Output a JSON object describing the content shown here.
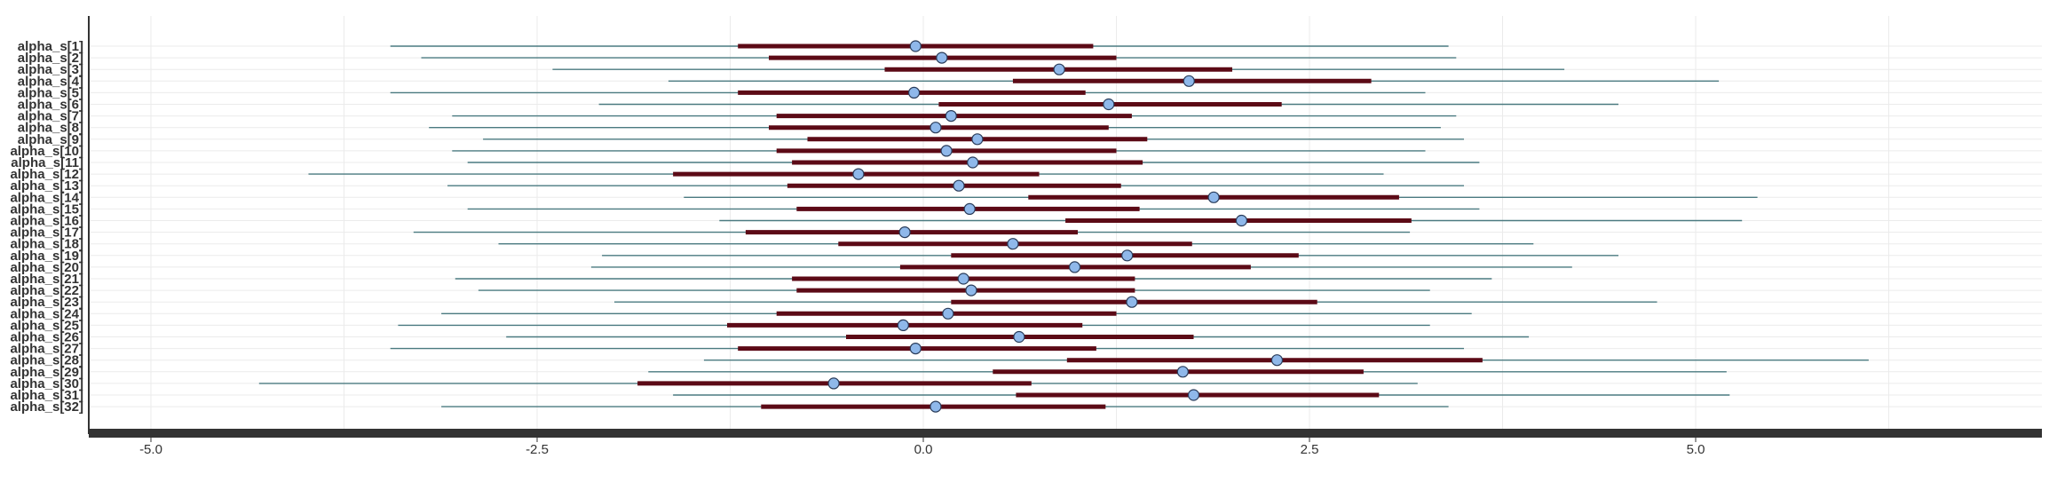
{
  "chart_data": {
    "type": "forest",
    "title": "",
    "xlabel": "",
    "ylabel": "",
    "grid": true,
    "xlim": [
      -5.4,
      7.2
    ],
    "xticks": [
      -5.0,
      -2.5,
      0.0,
      2.5,
      5.0
    ],
    "xtick_labels": [
      "-5.0",
      "-2.5",
      "0.0",
      "2.5",
      "5.0"
    ],
    "colors": {
      "outer_interval": "#4a7a80",
      "inner_interval": "#5c0a16",
      "point_fill": "#8fb8ea",
      "point_stroke": "#2a3c5a",
      "axis": "#333333",
      "grid": "#ebebeb"
    },
    "parameters": [
      {
        "label": "alpha_s[1]",
        "mean": -0.05,
        "inner": [
          -1.2,
          1.1
        ],
        "outer": [
          -3.45,
          3.4
        ]
      },
      {
        "label": "alpha_s[2]",
        "mean": 0.12,
        "inner": [
          -1.0,
          1.25
        ],
        "outer": [
          -3.25,
          3.45
        ]
      },
      {
        "label": "alpha_s[3]",
        "mean": 0.88,
        "inner": [
          -0.25,
          2.0
        ],
        "outer": [
          -2.4,
          4.15
        ]
      },
      {
        "label": "alpha_s[4]",
        "mean": 1.72,
        "inner": [
          0.58,
          2.9
        ],
        "outer": [
          -1.65,
          5.15
        ]
      },
      {
        "label": "alpha_s[5]",
        "mean": -0.06,
        "inner": [
          -1.2,
          1.05
        ],
        "outer": [
          -3.45,
          3.25
        ]
      },
      {
        "label": "alpha_s[6]",
        "mean": 1.2,
        "inner": [
          0.1,
          2.32
        ],
        "outer": [
          -2.1,
          4.5
        ]
      },
      {
        "label": "alpha_s[7]",
        "mean": 0.18,
        "inner": [
          -0.95,
          1.35
        ],
        "outer": [
          -3.05,
          3.45
        ]
      },
      {
        "label": "alpha_s[8]",
        "mean": 0.08,
        "inner": [
          -1.0,
          1.2
        ],
        "outer": [
          -3.2,
          3.35
        ]
      },
      {
        "label": "alpha_s[9]",
        "mean": 0.35,
        "inner": [
          -0.75,
          1.45
        ],
        "outer": [
          -2.85,
          3.5
        ]
      },
      {
        "label": "alpha_s[10]",
        "mean": 0.15,
        "inner": [
          -0.95,
          1.25
        ],
        "outer": [
          -3.05,
          3.25
        ]
      },
      {
        "label": "alpha_s[11]",
        "mean": 0.32,
        "inner": [
          -0.85,
          1.42
        ],
        "outer": [
          -2.95,
          3.6
        ]
      },
      {
        "label": "alpha_s[12]",
        "mean": -0.42,
        "inner": [
          -1.62,
          0.75
        ],
        "outer": [
          -3.98,
          2.98
        ]
      },
      {
        "label": "alpha_s[13]",
        "mean": 0.23,
        "inner": [
          -0.88,
          1.28
        ],
        "outer": [
          -3.08,
          3.5
        ]
      },
      {
        "label": "alpha_s[14]",
        "mean": 1.88,
        "inner": [
          0.68,
          3.08
        ],
        "outer": [
          -1.55,
          5.4
        ]
      },
      {
        "label": "alpha_s[15]",
        "mean": 0.3,
        "inner": [
          -0.82,
          1.4
        ],
        "outer": [
          -2.95,
          3.6
        ]
      },
      {
        "label": "alpha_s[16]",
        "mean": 2.06,
        "inner": [
          0.92,
          3.16
        ],
        "outer": [
          -1.32,
          5.3
        ]
      },
      {
        "label": "alpha_s[17]",
        "mean": -0.12,
        "inner": [
          -1.15,
          1.0
        ],
        "outer": [
          -3.3,
          3.15
        ]
      },
      {
        "label": "alpha_s[18]",
        "mean": 0.58,
        "inner": [
          -0.55,
          1.74
        ],
        "outer": [
          -2.75,
          3.95
        ]
      },
      {
        "label": "alpha_s[19]",
        "mean": 1.32,
        "inner": [
          0.18,
          2.43
        ],
        "outer": [
          -2.08,
          4.5
        ]
      },
      {
        "label": "alpha_s[20]",
        "mean": 0.98,
        "inner": [
          -0.15,
          2.12
        ],
        "outer": [
          -2.15,
          4.2
        ]
      },
      {
        "label": "alpha_s[21]",
        "mean": 0.26,
        "inner": [
          -0.85,
          1.37
        ],
        "outer": [
          -3.03,
          3.68
        ]
      },
      {
        "label": "alpha_s[22]",
        "mean": 0.31,
        "inner": [
          -0.82,
          1.37
        ],
        "outer": [
          -2.88,
          3.28
        ]
      },
      {
        "label": "alpha_s[23]",
        "mean": 1.35,
        "inner": [
          0.18,
          2.55
        ],
        "outer": [
          -2.0,
          4.75
        ]
      },
      {
        "label": "alpha_s[24]",
        "mean": 0.16,
        "inner": [
          -0.95,
          1.25
        ],
        "outer": [
          -3.12,
          3.55
        ]
      },
      {
        "label": "alpha_s[25]",
        "mean": -0.13,
        "inner": [
          -1.27,
          1.03
        ],
        "outer": [
          -3.4,
          3.28
        ]
      },
      {
        "label": "alpha_s[26]",
        "mean": 0.62,
        "inner": [
          -0.5,
          1.75
        ],
        "outer": [
          -2.7,
          3.92
        ]
      },
      {
        "label": "alpha_s[27]",
        "mean": -0.05,
        "inner": [
          -1.2,
          1.12
        ],
        "outer": [
          -3.45,
          3.5
        ]
      },
      {
        "label": "alpha_s[28]",
        "mean": 2.29,
        "inner": [
          0.93,
          3.62
        ],
        "outer": [
          -1.42,
          6.12
        ]
      },
      {
        "label": "alpha_s[29]",
        "mean": 1.68,
        "inner": [
          0.45,
          2.85
        ],
        "outer": [
          -1.78,
          5.2
        ]
      },
      {
        "label": "alpha_s[30]",
        "mean": -0.58,
        "inner": [
          -1.85,
          0.7
        ],
        "outer": [
          -4.3,
          3.2
        ]
      },
      {
        "label": "alpha_s[31]",
        "mean": 1.75,
        "inner": [
          0.6,
          2.95
        ],
        "outer": [
          -1.62,
          5.22
        ]
      },
      {
        "label": "alpha_s[32]",
        "mean": 0.08,
        "inner": [
          -1.05,
          1.18
        ],
        "outer": [
          -3.12,
          3.4
        ]
      }
    ]
  }
}
